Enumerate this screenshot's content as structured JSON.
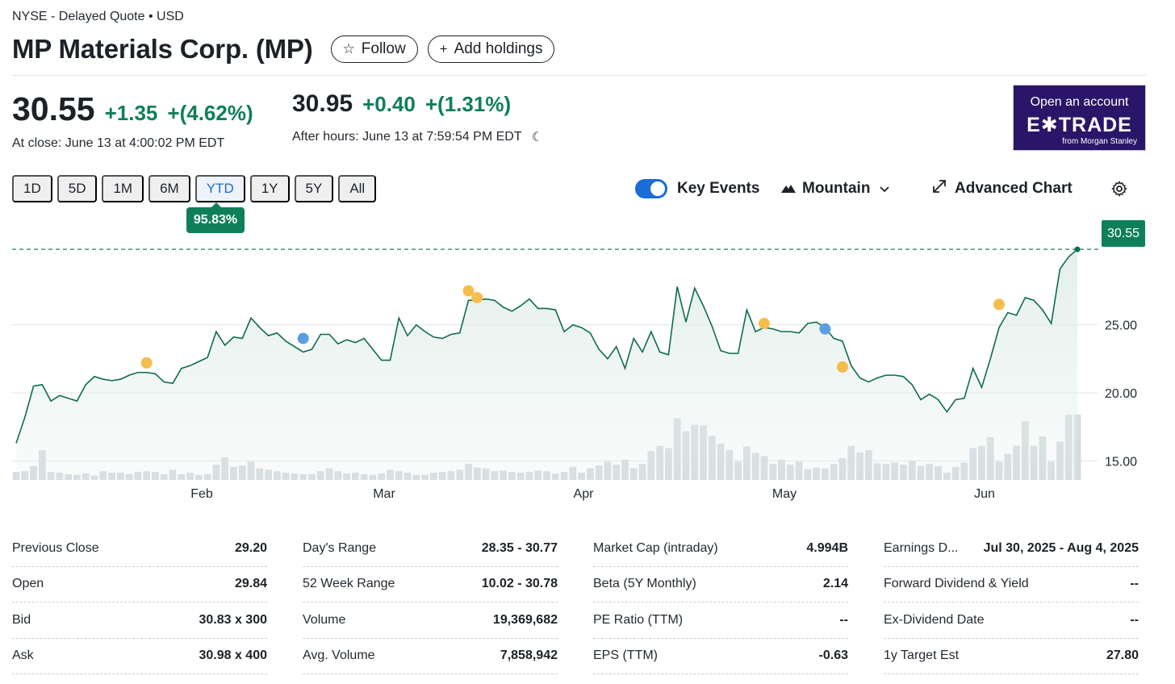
{
  "header": {
    "exchange_line": "NYSE - Delayed Quote • USD",
    "company": "MP Materials Corp. (MP)",
    "follow_label": "Follow",
    "add_holdings_label": "Add holdings"
  },
  "quote": {
    "close_price": "30.55",
    "close_change": "+1.35",
    "close_change_pct": "+(4.62%)",
    "close_time": "At close: June 13 at 4:00:02 PM EDT",
    "after_price": "30.95",
    "after_change": "+0.40",
    "after_change_pct": "+(1.31%)",
    "after_time": "After hours: June 13 at 7:59:54 PM EDT"
  },
  "ad": {
    "line1": "Open an account",
    "logo": "E✱TRADE",
    "line3": "from Morgan Stanley"
  },
  "toolbar": {
    "ranges": [
      "1D",
      "5D",
      "1M",
      "6M",
      "YTD",
      "1Y",
      "5Y",
      "All"
    ],
    "active_range": "YTD",
    "performance": "95.83%",
    "key_events_label": "Key Events",
    "key_events_on": true,
    "chart_type_label": "Mountain",
    "advanced_label": "Advanced Chart"
  },
  "chart_data": {
    "type": "area",
    "x_labels": [
      "Feb",
      "Mar",
      "Apr",
      "May",
      "Jun"
    ],
    "y_ticks": [
      "25.00",
      "20.00",
      "15.00"
    ],
    "ylim": [
      13.6,
      31.8
    ],
    "last_price_label": "30.55",
    "grid": true,
    "colors": {
      "line": "#0f6b4f",
      "fill": "#e3efea",
      "volume": "#d5dbe0",
      "event_earnings": "#f5bd4c",
      "event_dividend": "#5b9ee3"
    },
    "prices": [
      16.3,
      18.2,
      20.5,
      20.6,
      19.4,
      19.8,
      19.6,
      19.4,
      20.6,
      21.2,
      21.0,
      20.9,
      21.0,
      21.3,
      21.5,
      21.5,
      21.4,
      20.8,
      20.7,
      21.8,
      22.0,
      22.3,
      22.6,
      24.5,
      23.5,
      24.1,
      24.0,
      25.5,
      24.8,
      24.2,
      24.4,
      23.8,
      23.4,
      23.0,
      23.2,
      24.3,
      24.3,
      23.6,
      23.9,
      23.7,
      24.0,
      23.2,
      22.4,
      22.4,
      25.5,
      24.2,
      25.0,
      24.5,
      24.1,
      24.0,
      24.3,
      24.4,
      26.8,
      26.8,
      26.9,
      26.8,
      26.3,
      26.0,
      26.4,
      26.9,
      26.2,
      26.2,
      26.1,
      24.5,
      25.0,
      24.8,
      24.4,
      23.2,
      22.5,
      23.4,
      21.8,
      24.0,
      23.0,
      24.5,
      23.0,
      22.8,
      27.8,
      25.2,
      27.7,
      26.4,
      24.9,
      23.1,
      22.9,
      22.9,
      26.1,
      24.5,
      24.8,
      24.7,
      24.5,
      24.5,
      24.4,
      25.1,
      25.2,
      24.8,
      24.0,
      23.8,
      22.0,
      21.1,
      20.8,
      21.1,
      21.3,
      21.3,
      21.2,
      20.6,
      19.5,
      19.9,
      19.5,
      18.6,
      19.5,
      19.6,
      21.8,
      20.4,
      22.5,
      24.8,
      25.9,
      25.7,
      27.0,
      26.8,
      26.1,
      25.1,
      29.1,
      30.0,
      30.55
    ],
    "volume": [
      0.11,
      0.12,
      0.19,
      0.41,
      0.11,
      0.1,
      0.08,
      0.07,
      0.09,
      0.06,
      0.12,
      0.1,
      0.1,
      0.08,
      0.11,
      0.12,
      0.11,
      0.08,
      0.14,
      0.08,
      0.1,
      0.07,
      0.08,
      0.21,
      0.31,
      0.18,
      0.2,
      0.25,
      0.16,
      0.14,
      0.12,
      0.1,
      0.09,
      0.08,
      0.08,
      0.12,
      0.16,
      0.12,
      0.09,
      0.1,
      0.08,
      0.07,
      0.09,
      0.14,
      0.12,
      0.1,
      0.07,
      0.07,
      0.1,
      0.11,
      0.12,
      0.14,
      0.22,
      0.17,
      0.16,
      0.12,
      0.13,
      0.11,
      0.1,
      0.11,
      0.13,
      0.12,
      0.09,
      0.11,
      0.18,
      0.1,
      0.16,
      0.2,
      0.25,
      0.21,
      0.28,
      0.16,
      0.22,
      0.4,
      0.47,
      0.44,
      0.85,
      0.67,
      0.76,
      0.75,
      0.61,
      0.5,
      0.41,
      0.25,
      0.46,
      0.37,
      0.33,
      0.22,
      0.28,
      0.21,
      0.25,
      0.15,
      0.17,
      0.16,
      0.22,
      0.3,
      0.47,
      0.38,
      0.41,
      0.23,
      0.22,
      0.24,
      0.21,
      0.26,
      0.19,
      0.22,
      0.19,
      0.1,
      0.18,
      0.24,
      0.44,
      0.47,
      0.59,
      0.25,
      0.36,
      0.47,
      0.81,
      0.47,
      0.6,
      0.25,
      0.53,
      0.9,
      0.9
    ],
    "events": [
      {
        "idx": 15,
        "price": 22.2,
        "kind": "earnings"
      },
      {
        "idx": 33,
        "price": 24.0,
        "kind": "dividend"
      },
      {
        "idx": 52,
        "price": 27.5,
        "kind": "earnings"
      },
      {
        "idx": 53,
        "price": 27.0,
        "kind": "earnings"
      },
      {
        "idx": 86,
        "price": 25.1,
        "kind": "earnings"
      },
      {
        "idx": 93,
        "price": 24.7,
        "kind": "dividend"
      },
      {
        "idx": 95,
        "price": 21.9,
        "kind": "earnings"
      },
      {
        "idx": 113,
        "price": 26.5,
        "kind": "earnings"
      }
    ]
  },
  "stats": [
    [
      {
        "label": "Previous Close",
        "value": "29.20"
      },
      {
        "label": "Open",
        "value": "29.84"
      },
      {
        "label": "Bid",
        "value": "30.83 x 300"
      },
      {
        "label": "Ask",
        "value": "30.98 x 400"
      }
    ],
    [
      {
        "label": "Day's Range",
        "value": "28.35 - 30.77"
      },
      {
        "label": "52 Week Range",
        "value": "10.02 - 30.78"
      },
      {
        "label": "Volume",
        "value": "19,369,682"
      },
      {
        "label": "Avg. Volume",
        "value": "7,858,942"
      }
    ],
    [
      {
        "label": "Market Cap (intraday)",
        "value": "4.994B"
      },
      {
        "label": "Beta (5Y Monthly)",
        "value": "2.14"
      },
      {
        "label": "PE Ratio (TTM)",
        "value": "--"
      },
      {
        "label": "EPS (TTM)",
        "value": "-0.63"
      }
    ],
    [
      {
        "label": "Earnings D...",
        "value": "Jul 30, 2025 - Aug 4, 2025"
      },
      {
        "label": "Forward Dividend & Yield",
        "value": "--"
      },
      {
        "label": "Ex-Dividend Date",
        "value": "--"
      },
      {
        "label": "1y Target Est",
        "value": "27.80"
      }
    ]
  ]
}
